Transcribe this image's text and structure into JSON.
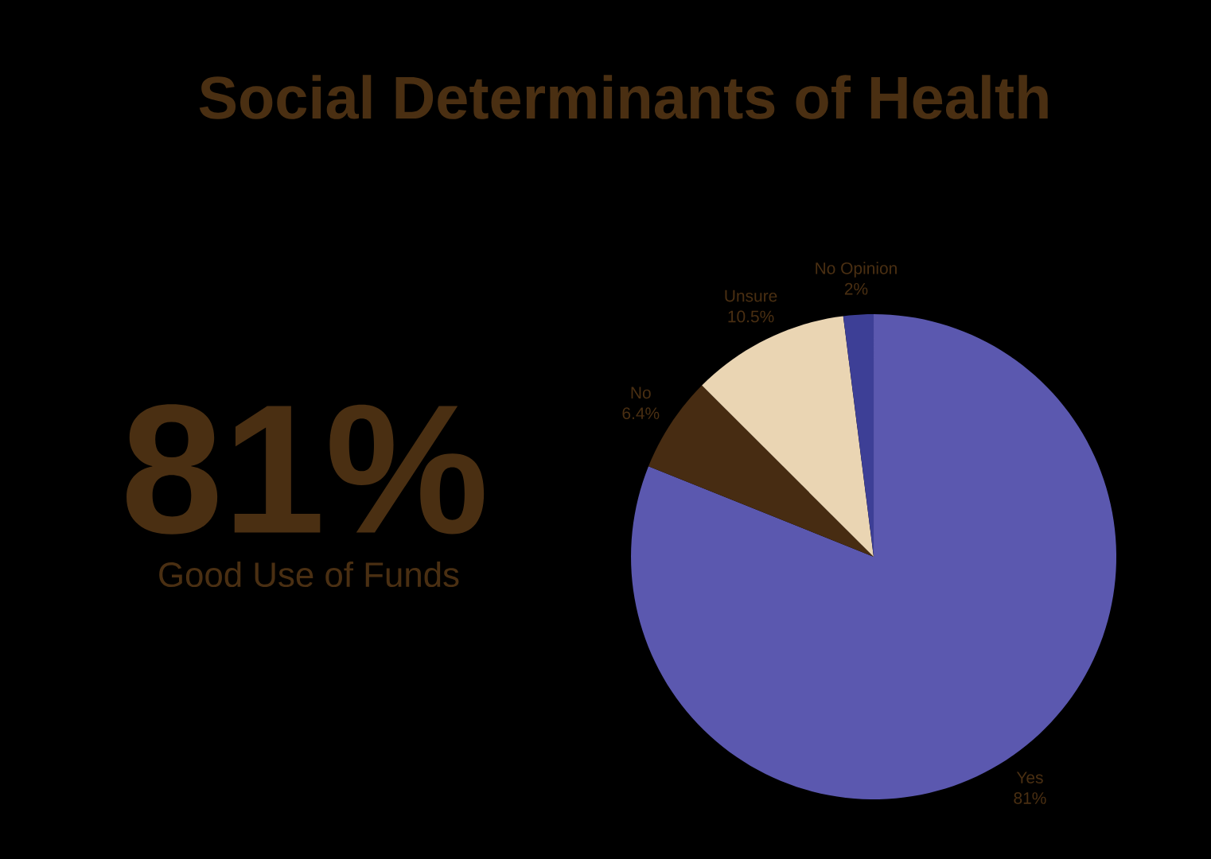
{
  "chart_data": {
    "type": "pie",
    "title": "Social Determinants of Health",
    "categories": [
      "Yes",
      "No",
      "Unsure",
      "No Opinion"
    ],
    "values": [
      81,
      6.4,
      10.5,
      2
    ],
    "value_labels": [
      "81%",
      "6.4%",
      "10.5%",
      "2%"
    ],
    "colors": [
      "#5b58af",
      "#472c12",
      "#ead5b3",
      "#3d3f96"
    ],
    "annotations": [
      "81%",
      "Good Use of Funds"
    ]
  }
}
